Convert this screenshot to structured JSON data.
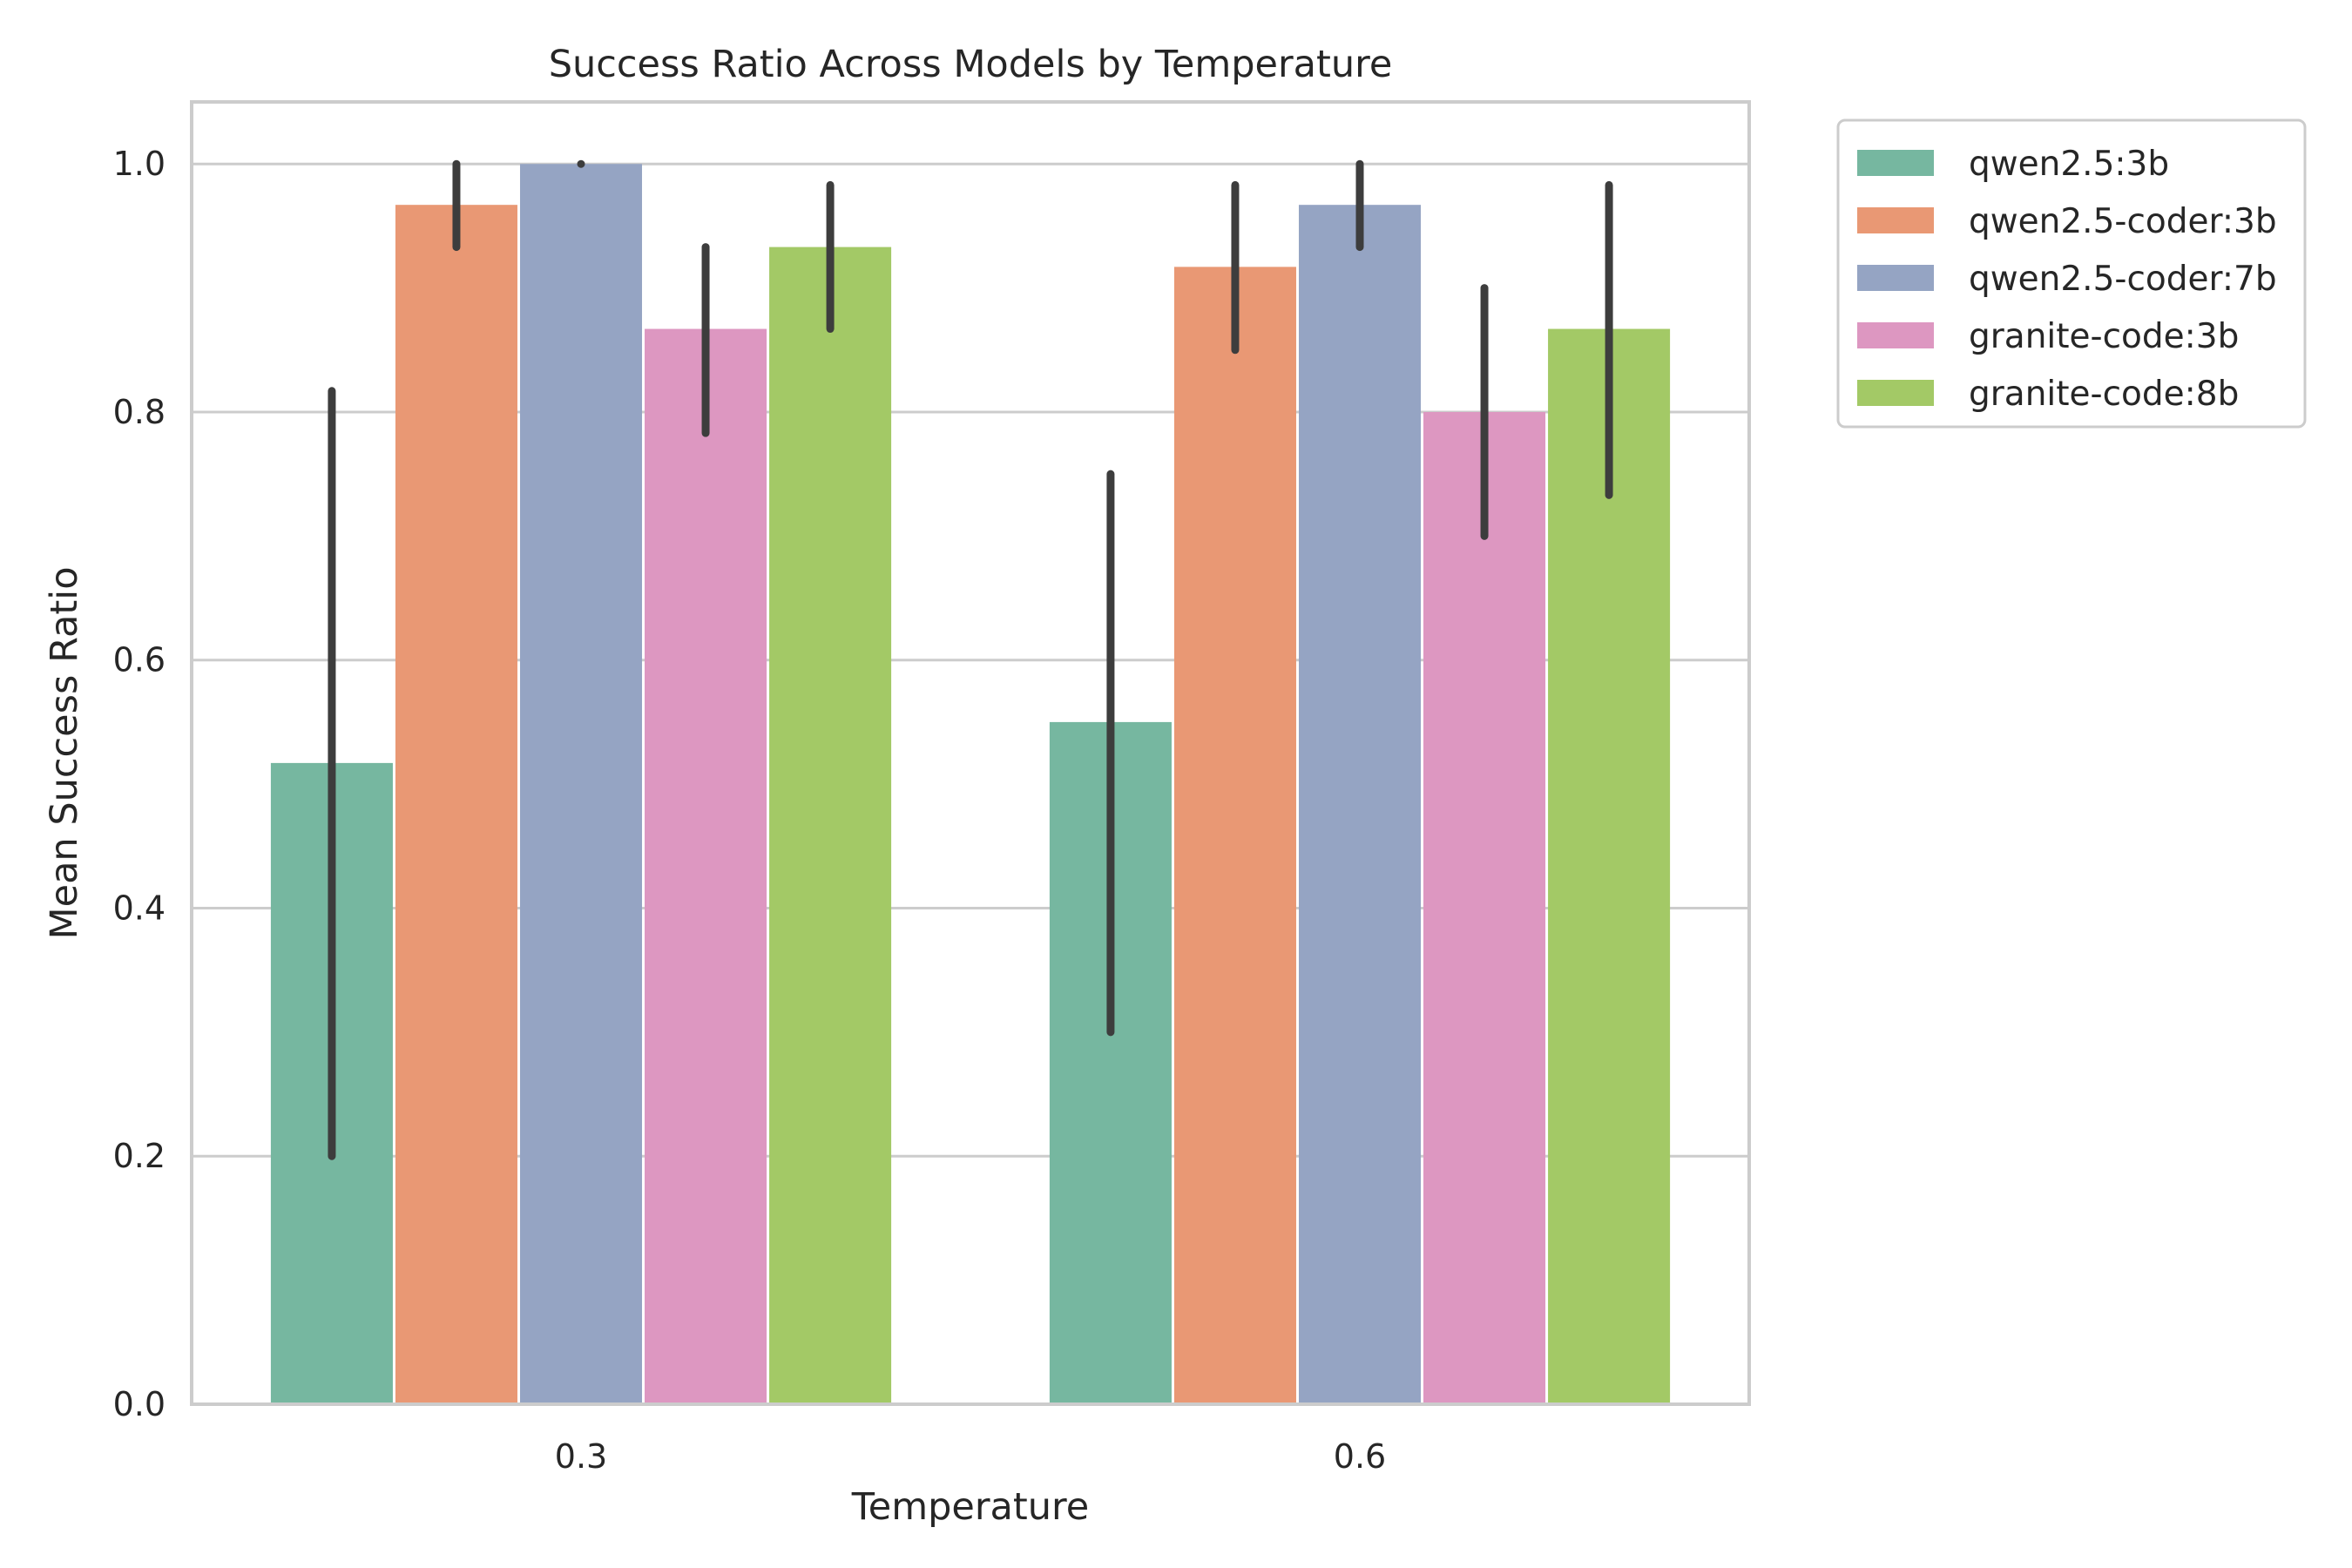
{
  "chart_data": {
    "type": "bar",
    "title": "Success Ratio Across Models by Temperature",
    "xlabel": "Temperature",
    "ylabel": "Mean Success Ratio",
    "categories": [
      "0.3",
      "0.6"
    ],
    "ylim": [
      0,
      1.05
    ],
    "yticks": [
      "0.0",
      "0.2",
      "0.4",
      "0.6",
      "0.8",
      "1.0"
    ],
    "grid": true,
    "legend_position": "outside-top-right",
    "series": [
      {
        "name": "qwen2.5:3b",
        "color": "#76b7a0",
        "values": [
          0.517,
          0.55
        ],
        "ci": [
          [
            0.2,
            0.817
          ],
          [
            0.3,
            0.75
          ]
        ]
      },
      {
        "name": "qwen2.5-coder:3b",
        "color": "#e99874",
        "values": [
          0.967,
          0.917
        ],
        "ci": [
          [
            0.933,
            1.0
          ],
          [
            0.85,
            0.983
          ]
        ]
      },
      {
        "name": "qwen2.5-coder:7b",
        "color": "#95a4c3",
        "values": [
          1.0,
          0.967
        ],
        "ci": [
          [
            1.0,
            1.0
          ],
          [
            0.933,
            1.0
          ]
        ]
      },
      {
        "name": "granite-code:3b",
        "color": "#dd97c1",
        "values": [
          0.867,
          0.8
        ],
        "ci": [
          [
            0.783,
            0.933
          ],
          [
            0.7,
            0.9
          ]
        ]
      },
      {
        "name": "granite-code:8b",
        "color": "#a3c966",
        "values": [
          0.933,
          0.867
        ],
        "ci": [
          [
            0.867,
            0.983
          ],
          [
            0.733,
            0.983
          ]
        ]
      }
    ]
  }
}
